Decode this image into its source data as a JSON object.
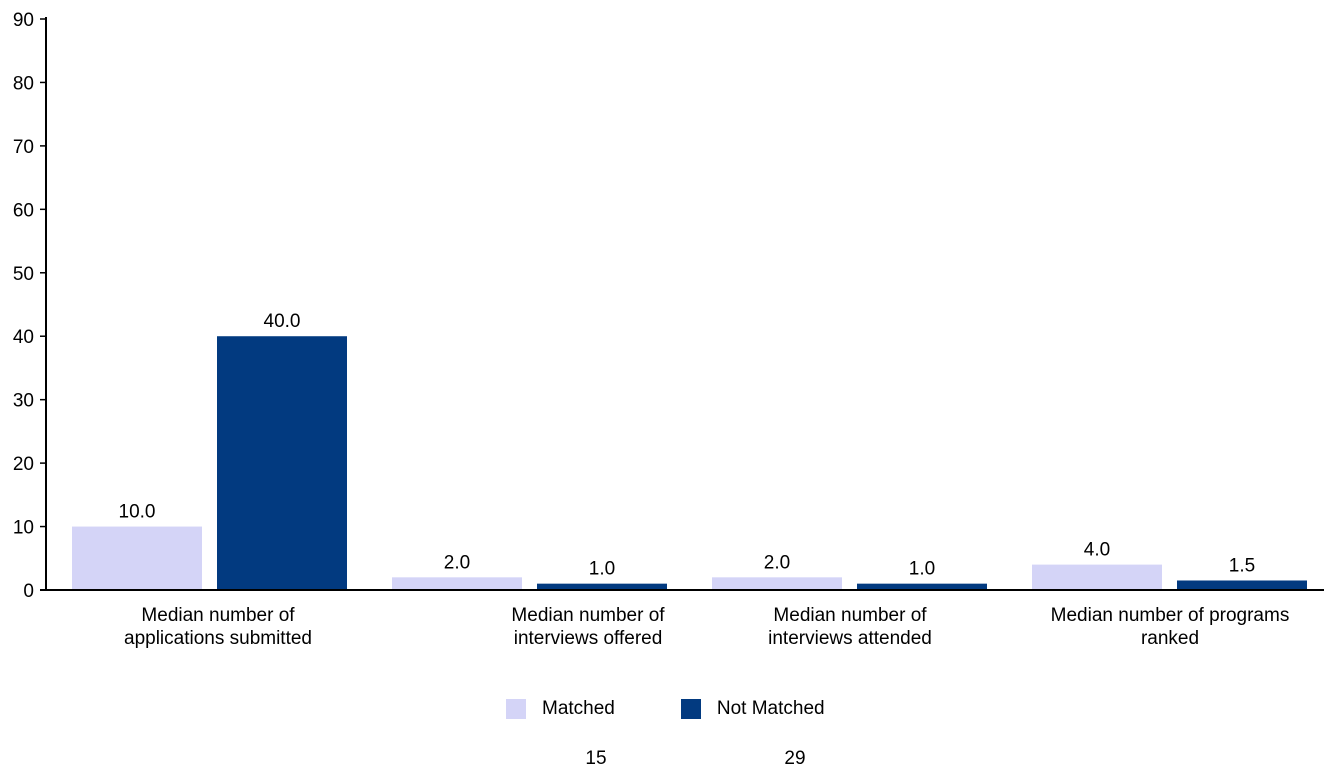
{
  "chart_data": {
    "type": "bar",
    "categories": [
      [
        "Median number of",
        "applications submitted"
      ],
      [
        "Median number of",
        "interviews offered"
      ],
      [
        "Median number of",
        "interviews attended"
      ],
      [
        "Median number of programs",
        "ranked"
      ]
    ],
    "series": [
      {
        "name": "Matched",
        "color": "#d4d4f7",
        "values": [
          10.0,
          2.0,
          2.0,
          4.0
        ],
        "labels": [
          "10.0",
          "2.0",
          "2.0",
          "4.0"
        ]
      },
      {
        "name": "Not Matched",
        "color": "#023a80",
        "values": [
          40.0,
          1.0,
          1.0,
          1.5
        ],
        "labels": [
          "40.0",
          "1.0",
          "1.0",
          "1.5"
        ]
      }
    ],
    "ylim": [
      0,
      90
    ],
    "yticks": [
      0,
      10,
      20,
      30,
      40,
      50,
      60,
      70,
      80,
      90
    ],
    "grid": false,
    "legend_position": "bottom-center"
  },
  "counts": [
    "15",
    "29"
  ]
}
